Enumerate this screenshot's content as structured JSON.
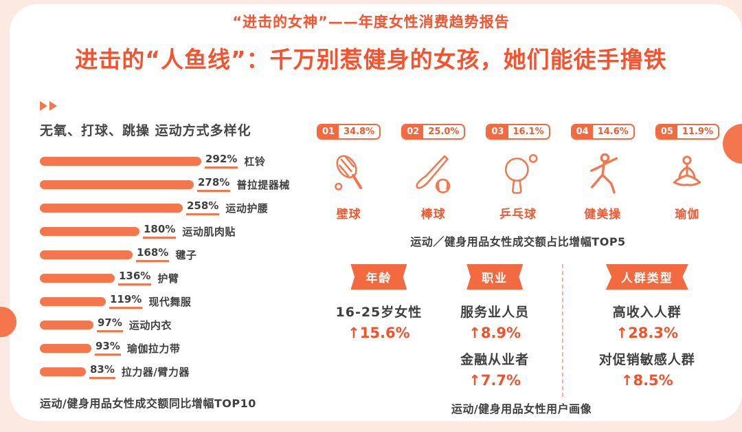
{
  "page": {
    "header_tag": "“进击的女神”——年度女性消费趋势报告",
    "title": "进击的“人鱼线”：千万别惹健身的女孩，她们能徒手撸铁"
  },
  "left_section": {
    "marker_icon": "double-right-arrow",
    "subtitle": "无氧、打球、跳操 运动方式多样化"
  },
  "chart_data": [
    {
      "type": "bar",
      "orientation": "horizontal",
      "title": "运动/健身用品女性成交额同比增幅TOP10",
      "unit": "%",
      "categories": [
        "杠铃",
        "普拉提器械",
        "运动护腰",
        "运动肌肉贴",
        "毽子",
        "护臂",
        "现代舞服",
        "运动内衣",
        "瑜伽拉力带",
        "拉力器/臂力器"
      ],
      "values": [
        292,
        278,
        258,
        180,
        168,
        136,
        119,
        97,
        93,
        83
      ],
      "value_labels": [
        "292%",
        "278%",
        "258%",
        "180%",
        "168%",
        "136%",
        "119%",
        "97%",
        "93%",
        "83%"
      ],
      "xlim": [
        0,
        292
      ],
      "bar_color": "#f4764d"
    },
    {
      "type": "bar",
      "title": "运动／健身用品女性成交额占比增幅TOP5",
      "unit": "%",
      "categories": [
        "壁球",
        "棒球",
        "乒乓球",
        "健美操",
        "瑜伽"
      ],
      "values": [
        34.8,
        25.0,
        16.1,
        14.6,
        11.9
      ],
      "value_labels": [
        "34.8%",
        "25.0%",
        "16.1%",
        "14.6%",
        "11.9%"
      ],
      "ranks": [
        "01",
        "02",
        "03",
        "04",
        "05"
      ],
      "icons": [
        "squash-racket-icon",
        "baseball-bat-icon",
        "table-tennis-icon",
        "aerobics-icon",
        "yoga-icon"
      ]
    },
    {
      "type": "table",
      "title": "运动/健身用品女性用户画像",
      "columns": [
        {
          "header": "年龄",
          "entries": [
            {
              "label": "16-25岁女性",
              "value": "↑15.6%"
            }
          ]
        },
        {
          "header": "职业",
          "entries": [
            {
              "label": "服务业人员",
              "value": "↑8.9%"
            },
            {
              "label": "金融从业者",
              "value": "↑7.7%"
            }
          ]
        },
        {
          "header": "人群类型",
          "entries": [
            {
              "label": "高收入人群",
              "value": "↑28.3%"
            },
            {
              "label": "对促销敏感人群",
              "value": "↑8.5%"
            }
          ]
        }
      ]
    }
  ],
  "colors": {
    "accent": "#f8512e",
    "bar": "#f4764d",
    "text_dark": "#3f3f3f",
    "background": "#fbe9e2",
    "card": "#ffffff"
  }
}
